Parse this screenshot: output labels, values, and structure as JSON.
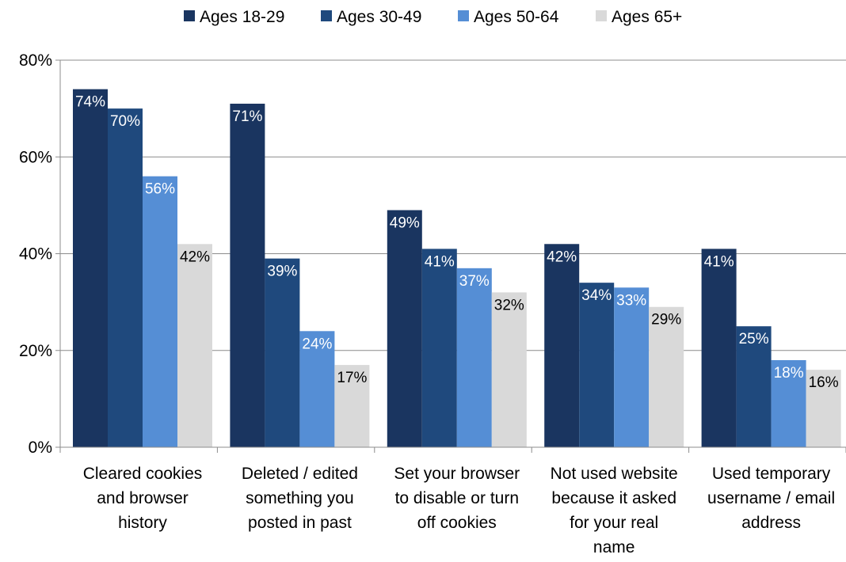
{
  "chart_data": {
    "type": "bar",
    "categories": [
      [
        "Cleared cookies",
        "and browser",
        "history"
      ],
      [
        "Deleted / edited",
        "something you",
        "posted in past"
      ],
      [
        "Set your browser",
        "to disable or turn",
        "off cookies"
      ],
      [
        "Not used website",
        "because it asked",
        "for your real",
        "name"
      ],
      [
        "Used temporary",
        "username / email",
        "address"
      ]
    ],
    "series": [
      {
        "name": "Ages 18-29",
        "color": "#1a3560",
        "label_color": "#ffffff",
        "values": [
          74,
          71,
          49,
          42,
          41
        ],
        "labels": [
          "74%",
          "71%",
          "49%",
          "42%",
          "41%"
        ]
      },
      {
        "name": "Ages 30-49",
        "color": "#1f497d",
        "label_color": "#ffffff",
        "values": [
          70,
          39,
          41,
          34,
          25
        ],
        "labels": [
          "70%",
          "39%",
          "41%",
          "34%",
          "25%"
        ]
      },
      {
        "name": "Ages 50-64",
        "color": "#558ed5",
        "label_color": "#ffffff",
        "values": [
          56,
          24,
          37,
          33,
          18
        ],
        "labels": [
          "56%",
          "24%",
          "37%",
          "33%",
          "18%"
        ]
      },
      {
        "name": "Ages 65+",
        "color": "#d9d9d9",
        "label_color": "#000000",
        "values": [
          42,
          17,
          32,
          29,
          16
        ],
        "labels": [
          "42%",
          "17%",
          "32%",
          "29%",
          "16%"
        ]
      }
    ],
    "yticks": [
      0,
      20,
      40,
      60,
      80
    ],
    "ytick_labels": [
      "0%",
      "20%",
      "40%",
      "60%",
      "80%"
    ],
    "ylim": [
      0,
      80
    ],
    "grid": true,
    "legend_position": "top-center",
    "title": "",
    "xlabel": "",
    "ylabel": ""
  }
}
